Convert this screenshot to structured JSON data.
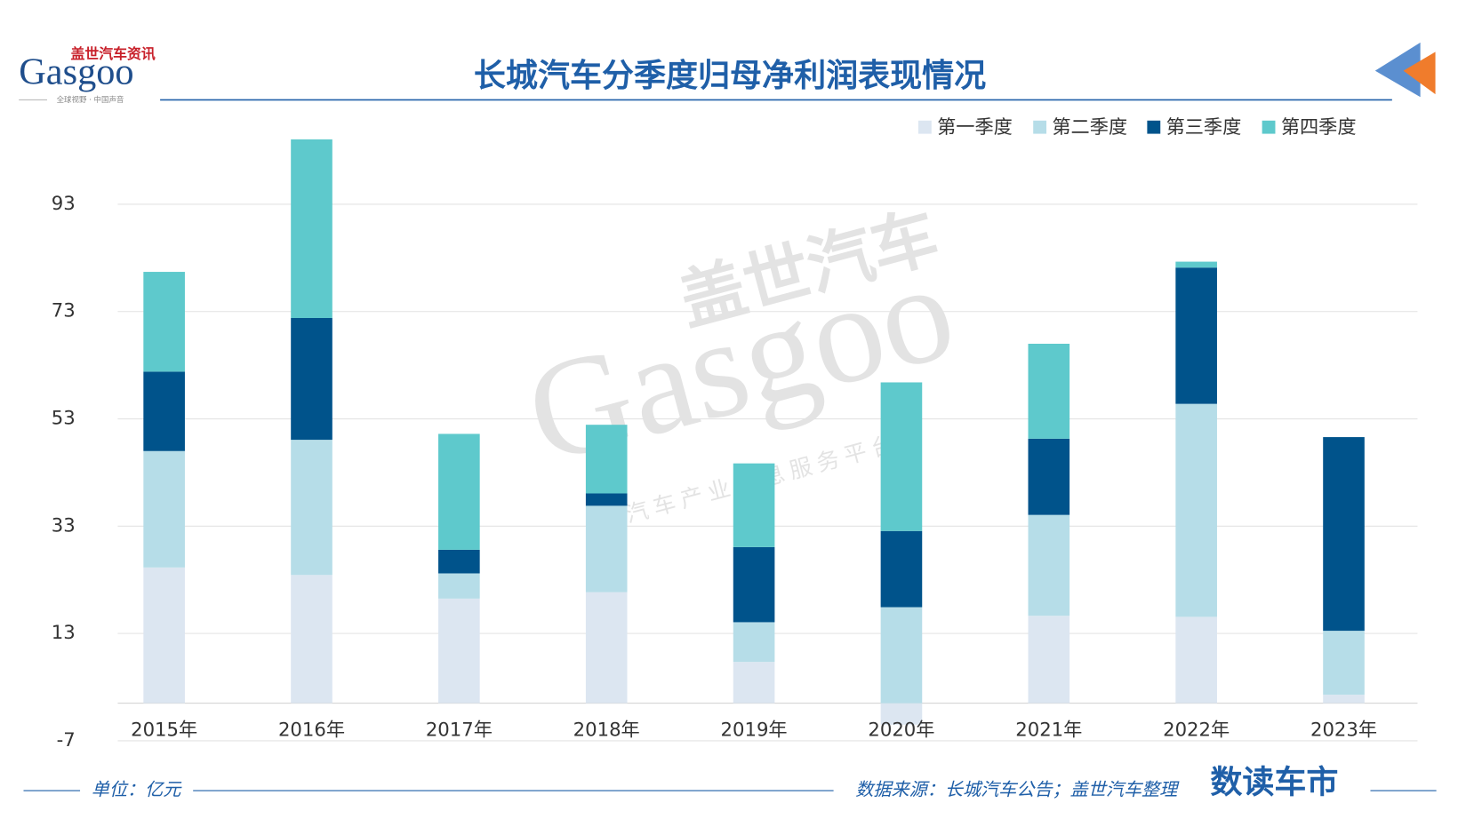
{
  "logo": {
    "name": "盖世汽车资讯",
    "brand": "Gasgoo",
    "slogan": "全球视野 · 中国声音"
  },
  "watermark": {
    "name": "盖世汽车",
    "brand": "Gasgoo",
    "slogan": "汽车产业信息服务平台"
  },
  "chart_data": {
    "type": "stacked_bar",
    "title": "长城汽车分季度归母净利润表现情况",
    "categories": [
      "2015年",
      "2016年",
      "2017年",
      "2018年",
      "2019年",
      "2020年",
      "2021年",
      "2022年",
      "2023年"
    ],
    "series": [
      {
        "name": "第一季度",
        "color": "#dce6f1",
        "values": [
          25.3,
          23.9,
          19.5,
          20.7,
          7.7,
          -4.0,
          16.3,
          16.1,
          1.6
        ]
      },
      {
        "name": "第二季度",
        "color": "#b6dde8",
        "values": [
          21.7,
          25.2,
          4.7,
          16.1,
          7.4,
          17.9,
          18.8,
          39.7,
          11.9
        ]
      },
      {
        "name": "第三季度",
        "color": "#00538b",
        "values": [
          14.8,
          22.7,
          4.4,
          2.3,
          14.0,
          14.2,
          14.2,
          25.4,
          36.1
        ]
      },
      {
        "name": "第四季度",
        "color": "#5ec9cc",
        "values": [
          18.6,
          33.3,
          21.6,
          12.8,
          15.6,
          27.7,
          17.7,
          1.1,
          null
        ]
      }
    ],
    "ylim": [
      -7,
      110
    ],
    "yticks": [
      -7,
      13,
      33,
      53,
      73,
      93
    ],
    "grid": true,
    "legend": "top-right",
    "unit": "单位：亿元",
    "source": "数据来源：长城汽车公告；盖世汽车整理",
    "brand": "数读车市"
  }
}
